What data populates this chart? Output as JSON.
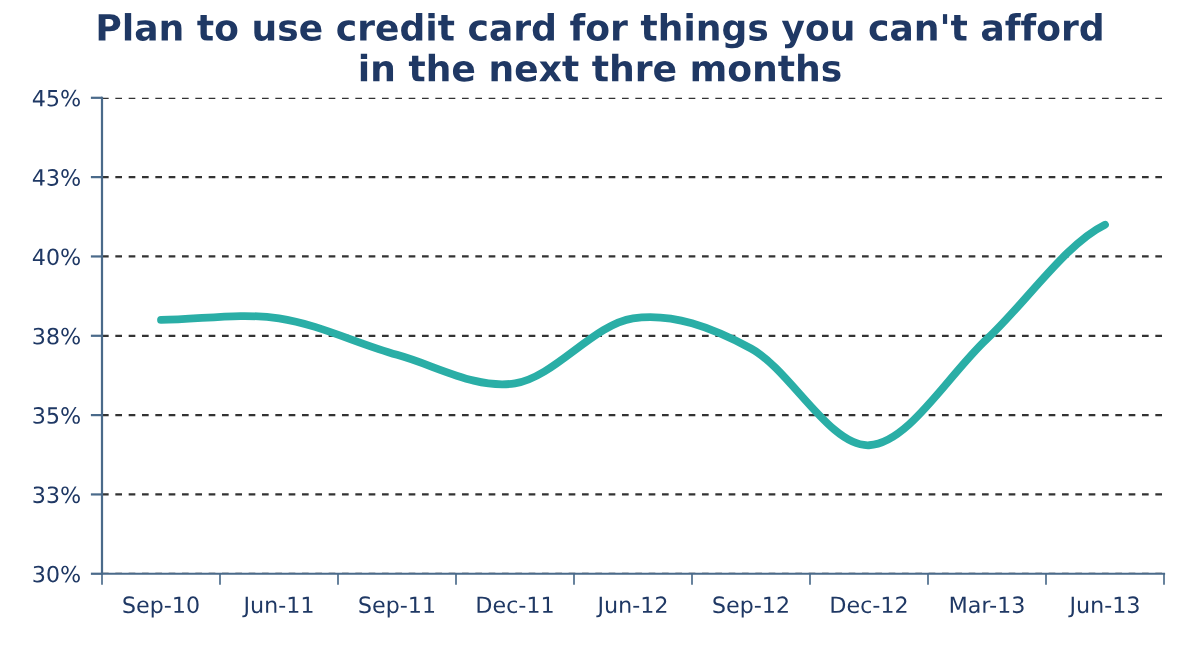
{
  "chart_data": {
    "type": "line",
    "title": "Plan to use credit card for things you can't afford\nin the next thre months",
    "categories": [
      "Sep-10",
      "Jun-11",
      "Sep-11",
      "Dec-11",
      "Jun-12",
      "Sep-12",
      "Dec-12",
      "Mar-13",
      "Jun-13"
    ],
    "series": [
      {
        "color": "#2aaea6",
        "values": [
          38.0,
          38.05,
          36.9,
          36.0,
          38.05,
          37.1,
          34.05,
          37.4,
          41.0
        ]
      }
    ],
    "ylim": [
      30,
      45
    ],
    "yticks": [
      {
        "value": 30,
        "label": "30%"
      },
      {
        "value": 32.5,
        "label": "33%"
      },
      {
        "value": 35,
        "label": "35%"
      },
      {
        "value": 37.5,
        "label": "38%"
      },
      {
        "value": 40,
        "label": "40%"
      },
      {
        "value": 42.5,
        "label": "43%"
      },
      {
        "value": 45,
        "label": "45%"
      }
    ],
    "grid": "y",
    "marker": "none",
    "line_style": "solid"
  }
}
